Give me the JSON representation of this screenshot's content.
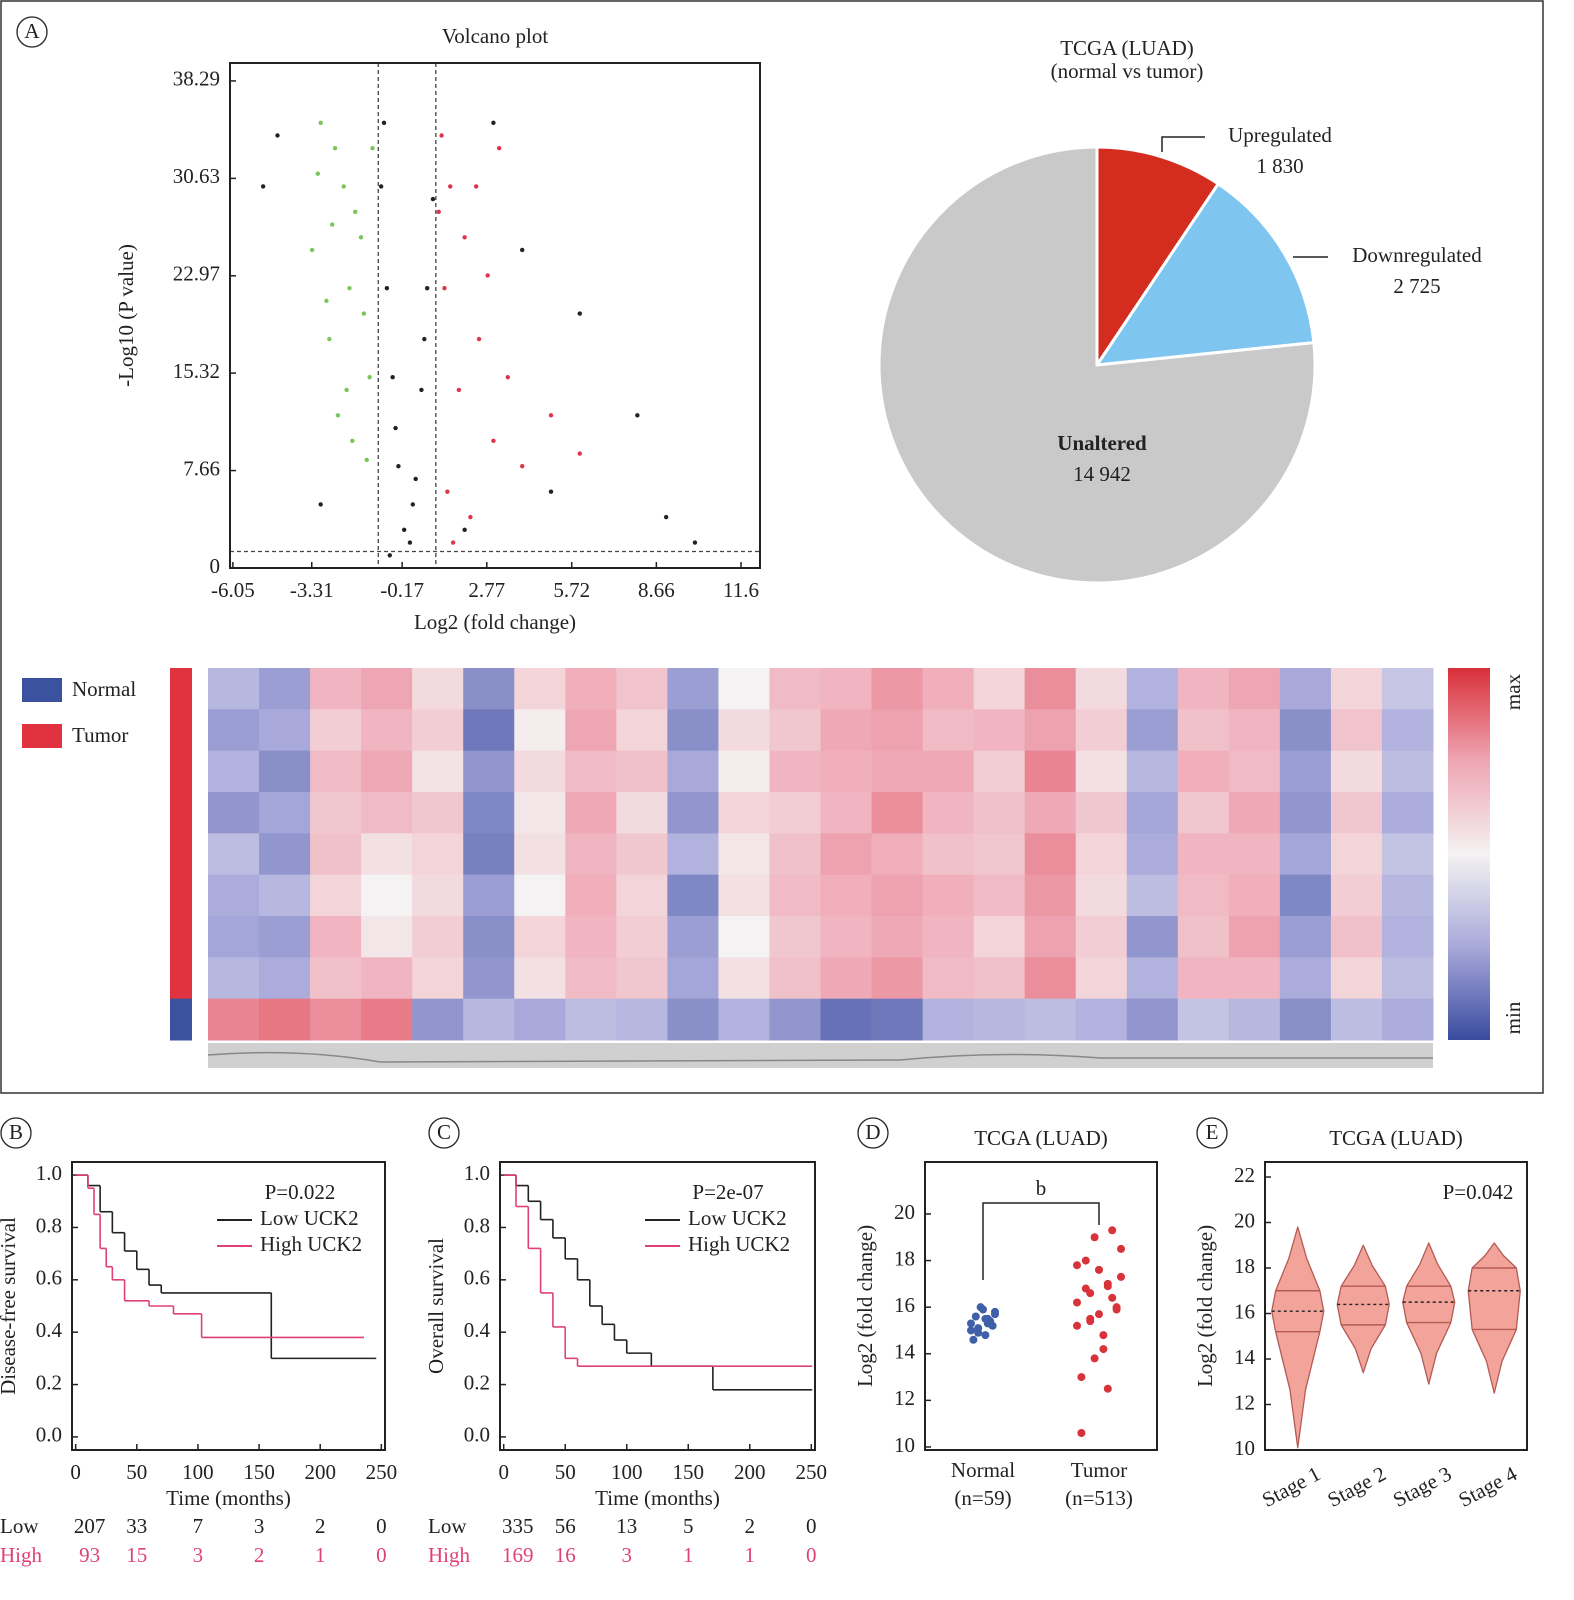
{
  "chart_data": [
    {
      "type": "scatter",
      "panel": "A",
      "title": "Volcano plot",
      "xlabel": "Log2 (fold change)",
      "ylabel": "-Log10 (P value)",
      "xlim": [
        -6.15,
        12.26
      ],
      "ylim": [
        0,
        39.7
      ],
      "xticks": [
        -6.05,
        -3.31,
        -0.17,
        2.77,
        5.72,
        8.66,
        11.6
      ],
      "yticks": [
        0,
        7.66,
        15.32,
        22.97,
        30.63,
        38.29
      ],
      "thresholds": {
        "x": [
          -1,
          1
        ],
        "y": 1.3
      },
      "series": [
        {
          "color": "#222222",
          "x": [
            -0.9,
            -0.7,
            -0.5,
            -0.3,
            -0.1,
            0.1,
            0.3,
            0.5,
            0.7,
            0.9,
            -0.8,
            0.6,
            -0.4,
            0.2,
            -4.5,
            -5,
            3,
            4,
            6,
            8,
            -3,
            2,
            5,
            9,
            -0.6,
            10
          ],
          "values": [
            30,
            22,
            15,
            8,
            3,
            2,
            7,
            14,
            22,
            29,
            35,
            18,
            11,
            5,
            34,
            30,
            35,
            25,
            20,
            12,
            5,
            3,
            6,
            4,
            1,
            2
          ]
        },
        {
          "color": "#7ac65a",
          "x": [
            -3.0,
            -2.5,
            -2.2,
            -1.8,
            -3.3,
            -2.0,
            -1.5,
            -2.7,
            -1.3,
            -2.4,
            -1.9,
            -3.1,
            -1.6,
            -2.8,
            -1.2,
            -2.1,
            -1.4,
            -2.6
          ],
          "values": [
            35,
            33,
            30,
            28,
            25,
            22,
            20,
            18,
            15,
            12,
            10,
            31,
            26,
            21,
            33,
            14,
            8.5,
            27
          ]
        },
        {
          "color": "#e0344a",
          "x": [
            1.2,
            1.5,
            2.0,
            1.3,
            2.5,
            1.8,
            3.0,
            1.4,
            2.2,
            3.5,
            4.0,
            1.1,
            2.8,
            5.0,
            1.6,
            3.2,
            6.0,
            2.4
          ],
          "values": [
            34,
            30,
            26,
            22,
            18,
            14,
            10,
            6,
            4,
            15,
            8,
            28,
            23,
            12,
            2,
            33,
            9,
            30
          ]
        }
      ]
    },
    {
      "type": "pie",
      "title": "TCGA (LUAD)",
      "subtitle": "(normal vs tumor)",
      "categories": [
        "Upregulated",
        "Downregulated",
        "Unaltered"
      ],
      "values": [
        1830,
        2725,
        14942
      ],
      "value_labels": [
        "1 830",
        "2 725",
        "14 942"
      ],
      "colors": [
        "#d42d1f",
        "#7ec5ef",
        "#c9c9c9"
      ]
    },
    {
      "type": "heatmap",
      "vlim": [
        0,
        1
      ],
      "colormap": [
        "#3a4b9f",
        "#a8a9da",
        "#f4f2f2",
        "#efa6b4",
        "#d9303a"
      ],
      "colorbar_labels": [
        "max",
        "min"
      ],
      "groups": [
        {
          "name": "Normal",
          "color": "#3b52a0"
        },
        {
          "name": "Tumor",
          "color": "#e0333f"
        }
      ],
      "row_group": [
        1,
        1,
        1,
        1,
        1,
        1,
        1,
        1,
        0
      ],
      "values": [
        [
          0.3,
          0.22,
          0.7,
          0.75,
          0.58,
          0.18,
          0.6,
          0.72,
          0.65,
          0.22,
          0.5,
          0.68,
          0.7,
          0.78,
          0.72,
          0.6,
          0.8,
          0.58,
          0.28,
          0.7,
          0.75,
          0.25,
          0.6,
          0.35
        ],
        [
          0.22,
          0.25,
          0.62,
          0.7,
          0.62,
          0.12,
          0.52,
          0.75,
          0.6,
          0.18,
          0.58,
          0.64,
          0.74,
          0.76,
          0.68,
          0.7,
          0.76,
          0.62,
          0.22,
          0.66,
          0.7,
          0.18,
          0.65,
          0.28
        ],
        [
          0.28,
          0.18,
          0.68,
          0.74,
          0.55,
          0.2,
          0.58,
          0.68,
          0.66,
          0.25,
          0.52,
          0.7,
          0.72,
          0.74,
          0.74,
          0.62,
          0.82,
          0.56,
          0.3,
          0.72,
          0.68,
          0.22,
          0.58,
          0.32
        ],
        [
          0.2,
          0.24,
          0.64,
          0.68,
          0.64,
          0.16,
          0.54,
          0.74,
          0.58,
          0.2,
          0.6,
          0.62,
          0.7,
          0.8,
          0.7,
          0.66,
          0.74,
          0.64,
          0.24,
          0.64,
          0.74,
          0.2,
          0.64,
          0.26
        ],
        [
          0.32,
          0.2,
          0.66,
          0.56,
          0.6,
          0.14,
          0.56,
          0.7,
          0.64,
          0.28,
          0.54,
          0.66,
          0.76,
          0.72,
          0.66,
          0.64,
          0.8,
          0.6,
          0.26,
          0.7,
          0.7,
          0.24,
          0.6,
          0.34
        ],
        [
          0.26,
          0.3,
          0.6,
          0.5,
          0.58,
          0.22,
          0.5,
          0.72,
          0.6,
          0.16,
          0.56,
          0.68,
          0.72,
          0.76,
          0.72,
          0.68,
          0.78,
          0.58,
          0.32,
          0.68,
          0.72,
          0.16,
          0.62,
          0.3
        ],
        [
          0.24,
          0.22,
          0.7,
          0.54,
          0.62,
          0.18,
          0.6,
          0.7,
          0.62,
          0.22,
          0.5,
          0.64,
          0.7,
          0.74,
          0.7,
          0.6,
          0.76,
          0.62,
          0.2,
          0.66,
          0.76,
          0.22,
          0.66,
          0.28
        ],
        [
          0.3,
          0.26,
          0.66,
          0.7,
          0.6,
          0.2,
          0.56,
          0.68,
          0.64,
          0.24,
          0.56,
          0.66,
          0.74,
          0.78,
          0.68,
          0.66,
          0.8,
          0.6,
          0.28,
          0.7,
          0.7,
          0.26,
          0.6,
          0.32
        ],
        [
          0.82,
          0.85,
          0.8,
          0.84,
          0.2,
          0.3,
          0.25,
          0.32,
          0.3,
          0.18,
          0.28,
          0.2,
          0.1,
          0.12,
          0.28,
          0.3,
          0.32,
          0.28,
          0.2,
          0.34,
          0.3,
          0.18,
          0.32,
          0.26
        ]
      ]
    },
    {
      "type": "survival",
      "panel": "B",
      "xlabel": "Time (months)",
      "ylabel": "Disease-free survival",
      "annotation": "P=0.022",
      "xlim": [
        -3,
        253
      ],
      "ylim": [
        -0.05,
        1.05
      ],
      "xticks": [
        0,
        50,
        100,
        150,
        200,
        250
      ],
      "yticks": [
        {
          "value": 0,
          "label": "0.0"
        },
        0.2,
        0.4,
        0.6,
        0.8,
        {
          "value": 1,
          "label": "1.0"
        }
      ],
      "series": [
        {
          "name": "Low UCK2",
          "color": "#222222",
          "x": [
            0,
            10,
            20,
            30,
            40,
            50,
            60,
            70,
            160,
            245
          ],
          "values": [
            1,
            0.96,
            0.86,
            0.78,
            0.71,
            0.64,
            0.58,
            0.55,
            0.3,
            0.3
          ]
        },
        {
          "name": "High UCK2",
          "color": "#e0407a",
          "x": [
            0,
            10,
            15,
            20,
            25,
            30,
            40,
            60,
            80,
            103,
            235
          ],
          "values": [
            1,
            0.95,
            0.85,
            0.72,
            0.65,
            0.6,
            0.52,
            0.5,
            0.47,
            0.38,
            0.38
          ]
        }
      ],
      "risk_table": [
        {
          "name": "Low",
          "values": [
            207,
            33,
            7,
            3,
            2,
            0
          ]
        },
        {
          "name": "High",
          "values": [
            93,
            15,
            3,
            2,
            1,
            0
          ]
        }
      ]
    },
    {
      "type": "survival",
      "panel": "C",
      "xlabel": "Time (months)",
      "ylabel": "Overall survival",
      "annotation": "P=2e-07",
      "xlim": [
        -3,
        253
      ],
      "ylim": [
        -0.05,
        1.05
      ],
      "xticks": [
        0,
        50,
        100,
        150,
        200,
        250
      ],
      "yticks": [
        {
          "value": 0,
          "label": "0.0"
        },
        0.2,
        0.4,
        0.6,
        0.8,
        {
          "value": 1,
          "label": "1.0"
        }
      ],
      "series": [
        {
          "name": "Low UCK2",
          "color": "#222222",
          "x": [
            0,
            10,
            20,
            30,
            40,
            50,
            60,
            70,
            80,
            90,
            100,
            120,
            170,
            250
          ],
          "values": [
            1,
            0.96,
            0.9,
            0.83,
            0.76,
            0.68,
            0.6,
            0.5,
            0.43,
            0.37,
            0.32,
            0.27,
            0.18,
            0.18
          ]
        },
        {
          "name": "High UCK2",
          "color": "#e0407a",
          "x": [
            0,
            10,
            20,
            30,
            40,
            50,
            60,
            250
          ],
          "values": [
            1,
            0.88,
            0.72,
            0.55,
            0.42,
            0.3,
            0.27,
            0.27
          ]
        }
      ],
      "risk_table": [
        {
          "name": "Low",
          "values": [
            335,
            56,
            13,
            5,
            2,
            0
          ]
        },
        {
          "name": "High",
          "values": [
            169,
            16,
            3,
            1,
            1,
            0
          ]
        }
      ]
    },
    {
      "type": "strip",
      "panel": "D",
      "title": "TCGA (LUAD)",
      "ylabel": "Log2 (fold change)",
      "significance": "b",
      "ylim": [
        9.87,
        22.23
      ],
      "yticks": [
        10,
        12,
        14,
        16,
        18,
        20
      ],
      "categories": [
        "Normal",
        "Tumor"
      ],
      "category_counts": [
        "(n=59)",
        "(n=513)"
      ],
      "series": [
        {
          "color": "#3f5fa8",
          "values": [
            15.3,
            15.5,
            15.1,
            15.8,
            14.8,
            15.6,
            15.2,
            15.9,
            14.6,
            15.4,
            16.0,
            15.0,
            15.3,
            14.9,
            15.7,
            15.5
          ]
        },
        {
          "color": "#d8323a",
          "values": [
            16.2,
            17.0,
            15.5,
            18.5,
            14.2,
            16.8,
            15.9,
            17.6,
            13.0,
            16.4,
            19.0,
            15.2,
            12.5,
            16.6,
            17.3,
            14.8,
            18.0,
            16.0,
            15.7,
            10.6,
            19.3,
            13.8,
            17.8,
            16.9,
            15.4
          ]
        }
      ]
    },
    {
      "type": "violin",
      "panel": "E",
      "title": "TCGA (LUAD)",
      "ylabel": "Log2 (fold change)",
      "annotation": "P=0.042",
      "ylim": [
        10,
        22.66
      ],
      "yticks": [
        10,
        12,
        14,
        16,
        18,
        20,
        22
      ],
      "color": "#f2a49a",
      "categories": [
        "Stage 1",
        "Stage 2",
        "Stage 3",
        "Stage 4"
      ],
      "min": [
        10.1,
        13.4,
        12.9,
        12.5
      ],
      "q1": [
        15.2,
        15.5,
        15.6,
        15.3
      ],
      "median": [
        16.1,
        16.4,
        16.5,
        17.0
      ],
      "q3": [
        17.0,
        17.2,
        17.2,
        18.0
      ],
      "max": [
        19.8,
        19.0,
        19.1,
        19.1
      ]
    }
  ]
}
